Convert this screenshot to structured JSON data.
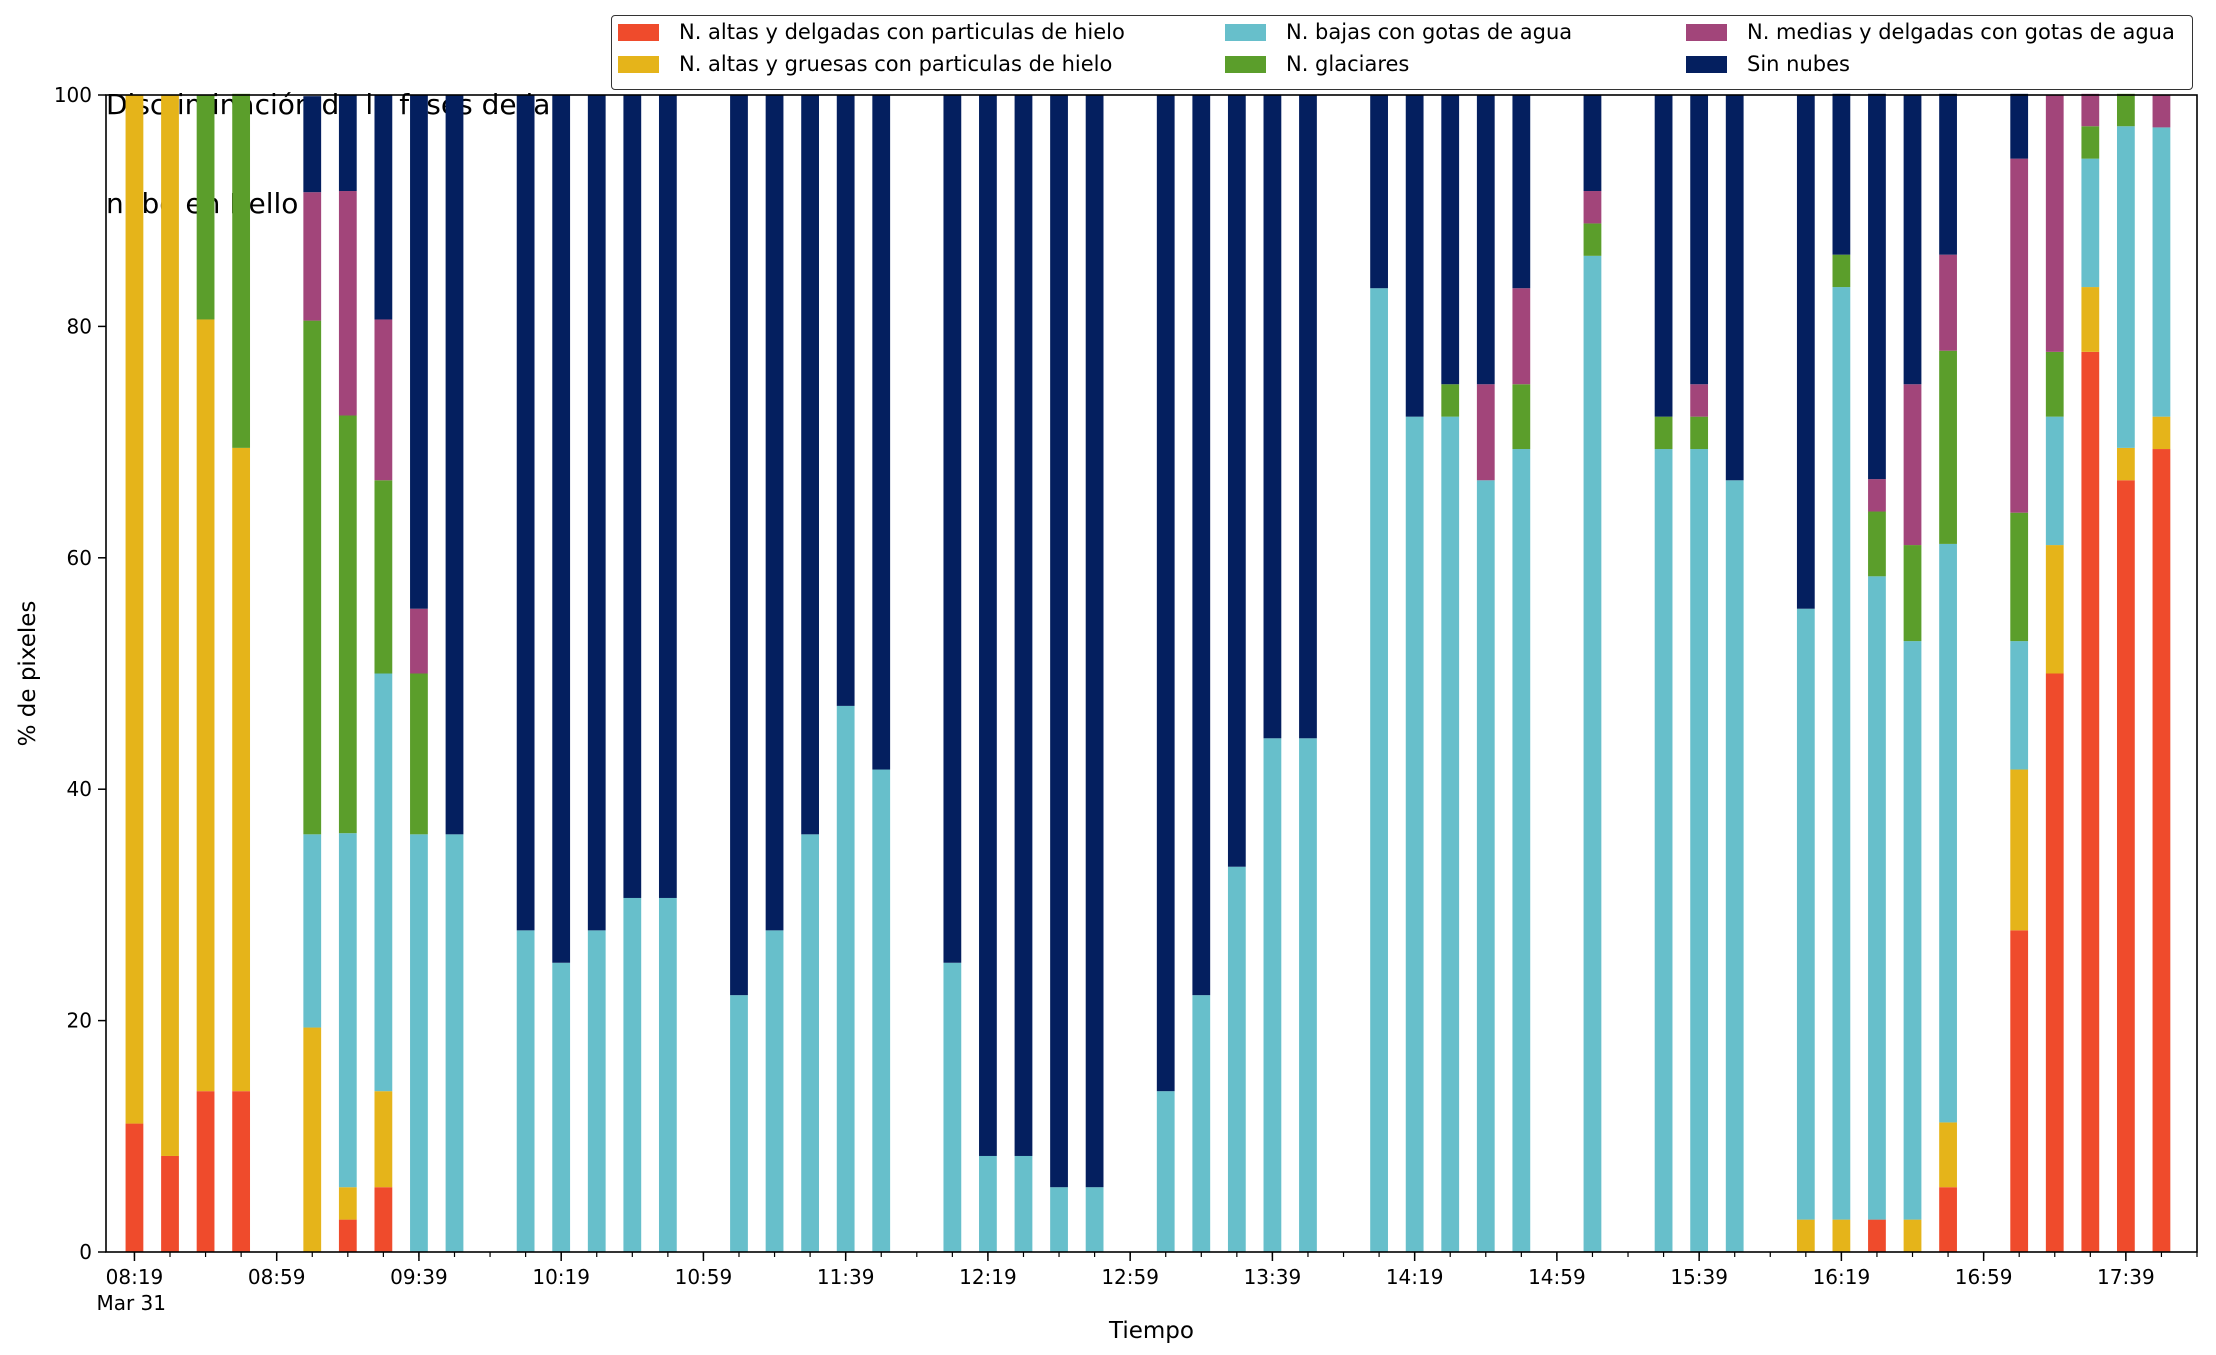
{
  "chart_data": {
    "type": "bar",
    "stacked": true,
    "title_lines": [
      "Discriminación de la fases de la",
      "nube en Bello"
    ],
    "xlabel": "Tiempo",
    "ylabel": "% de pixeles",
    "ylim": [
      0,
      100
    ],
    "yticks": [
      0,
      20,
      40,
      60,
      80,
      100
    ],
    "xlim": [
      "08:11",
      "17:59"
    ],
    "x_major_ticks": [
      "08:19",
      "08:59",
      "09:39",
      "10:19",
      "10:59",
      "11:39",
      "12:19",
      "12:59",
      "13:39",
      "14:19",
      "14:59",
      "15:39",
      "16:19",
      "16:59",
      "17:39"
    ],
    "x_minor_step_minutes": 10,
    "x_date_label": "Mar 31",
    "bar_width_minutes": 5,
    "grid": false,
    "legend_position": "top-right",
    "times": [
      "08:19",
      "08:29",
      "08:39",
      "08:49",
      "09:09",
      "09:19",
      "09:29",
      "09:39",
      "09:49",
      "10:09",
      "10:19",
      "10:29",
      "10:39",
      "10:49",
      "11:09",
      "11:19",
      "11:29",
      "11:39",
      "11:49",
      "12:09",
      "12:19",
      "12:29",
      "12:39",
      "12:49",
      "13:09",
      "13:19",
      "13:29",
      "13:39",
      "13:49",
      "14:09",
      "14:19",
      "14:29",
      "14:39",
      "14:49",
      "15:09",
      "15:29",
      "15:39",
      "15:49",
      "16:09",
      "16:19",
      "16:29",
      "16:39",
      "16:49",
      "17:09",
      "17:19",
      "17:29",
      "17:39",
      "17:49"
    ],
    "series": [
      {
        "name": "N. altas y delgadas con particulas de hielo",
        "color": "#ef4b2c",
        "values": [
          11.1,
          8.3,
          13.9,
          13.9,
          0,
          2.8,
          5.6,
          0,
          0,
          0,
          0,
          0,
          0,
          0,
          0,
          0,
          0,
          0,
          0,
          0,
          0,
          0,
          0,
          0,
          0,
          0,
          0,
          0,
          0,
          0,
          0,
          0,
          0,
          0,
          0,
          0,
          0,
          0,
          0,
          0,
          2.8,
          0,
          5.6,
          27.8,
          50,
          77.8,
          66.7,
          69.4
        ]
      },
      {
        "name": "N. altas y gruesas con particulas de hielo",
        "color": "#e5b41a",
        "values": [
          88.9,
          91.7,
          66.7,
          55.6,
          19.4,
          2.8,
          8.3,
          0,
          0,
          0,
          0,
          0,
          0,
          0,
          0,
          0,
          0,
          0,
          0,
          0,
          0,
          0,
          0,
          0,
          0,
          0,
          0,
          0,
          0,
          0,
          0,
          0,
          0,
          0,
          0,
          0,
          0,
          0,
          2.8,
          2.8,
          0,
          2.8,
          5.6,
          13.9,
          11.1,
          5.6,
          2.8,
          2.8
        ]
      },
      {
        "name": "N. bajas con gotas de agua",
        "color": "#67bfcb",
        "values": [
          0,
          0,
          0,
          0,
          16.7,
          30.6,
          36.1,
          36.1,
          36.1,
          27.8,
          25,
          27.8,
          30.6,
          30.6,
          22.2,
          27.8,
          36.1,
          47.2,
          41.7,
          25,
          8.3,
          8.3,
          5.6,
          5.6,
          13.9,
          22.2,
          33.3,
          44.4,
          44.4,
          83.3,
          72.2,
          72.2,
          66.7,
          69.4,
          86.1,
          69.4,
          69.4,
          66.7,
          52.8,
          80.6,
          55.6,
          50,
          50,
          11.1,
          11.1,
          11.1,
          27.8,
          25
        ]
      },
      {
        "name": "N. glaciares",
        "color": "#5b9e2b",
        "values": [
          0,
          0,
          19.4,
          30.6,
          44.4,
          36.1,
          16.7,
          13.9,
          0,
          0,
          0,
          0,
          0,
          0,
          0,
          0,
          0,
          0,
          0,
          0,
          0,
          0,
          0,
          0,
          0,
          0,
          0,
          0,
          0,
          0,
          0,
          2.8,
          0,
          5.6,
          2.8,
          2.8,
          2.8,
          0,
          0,
          2.8,
          5.6,
          8.3,
          16.7,
          11.1,
          5.6,
          2.8,
          2.8,
          0
        ]
      },
      {
        "name": "N. medias y delgadas con gotas de agua",
        "color": "#a2457a",
        "values": [
          0,
          0,
          0,
          0,
          11.1,
          19.4,
          13.9,
          5.6,
          0,
          0,
          0,
          0,
          0,
          0,
          0,
          0,
          0,
          0,
          0,
          0,
          0,
          0,
          0,
          0,
          0,
          0,
          0,
          0,
          0,
          0,
          0,
          0,
          8.3,
          8.3,
          2.8,
          0,
          2.8,
          0,
          0,
          0,
          2.8,
          13.9,
          8.3,
          30.6,
          22.2,
          2.8,
          0,
          2.8
        ]
      },
      {
        "name": "Sin nubes",
        "color": "#041f5f",
        "values": [
          0,
          0,
          0,
          0,
          8.3,
          8.3,
          19.4,
          44.4,
          63.9,
          72.2,
          75,
          72.2,
          69.4,
          69.4,
          77.8,
          72.2,
          63.9,
          52.8,
          58.3,
          75,
          91.7,
          91.7,
          94.4,
          94.4,
          86.1,
          77.8,
          66.7,
          55.6,
          55.6,
          16.7,
          27.8,
          25,
          25,
          16.7,
          8.3,
          27.8,
          25,
          33.3,
          44.4,
          13.9,
          33.3,
          25,
          13.9,
          5.6,
          0,
          0,
          0,
          0
        ]
      }
    ]
  }
}
